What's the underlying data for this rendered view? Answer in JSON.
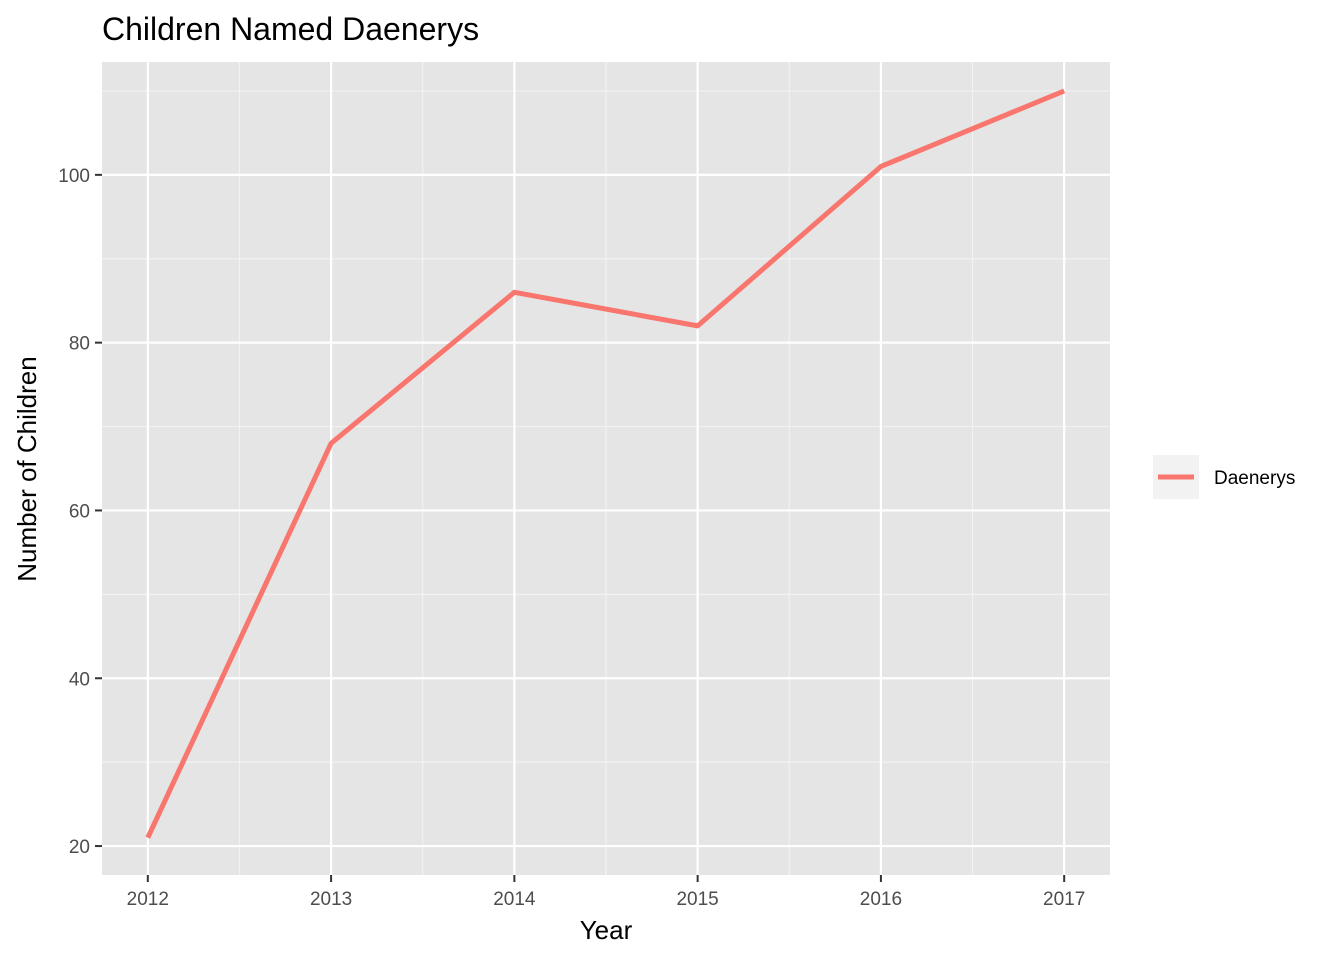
{
  "chart_data": {
    "type": "line",
    "title": "Children Named Daenerys",
    "xlabel": "Year",
    "ylabel": "Number of Children",
    "x": [
      2012,
      2013,
      2014,
      2015,
      2016,
      2017
    ],
    "series": [
      {
        "name": "Daenerys",
        "values": [
          21,
          68,
          86,
          82,
          101,
          110
        ],
        "color": "#f8766d"
      }
    ],
    "xlim": [
      2011.75,
      2017.25
    ],
    "ylim": [
      16.55,
      113.45
    ],
    "x_ticks": [
      2012,
      2013,
      2014,
      2015,
      2016,
      2017
    ],
    "x_tick_labels": [
      "2012",
      "2013",
      "2014",
      "2015",
      "2016",
      "2017"
    ],
    "y_ticks": [
      20,
      40,
      60,
      80,
      100
    ],
    "y_tick_labels": [
      "20",
      "40",
      "60",
      "80",
      "100"
    ],
    "grid": true,
    "panel_background": "#e5e5e5",
    "legend_position": "right"
  }
}
